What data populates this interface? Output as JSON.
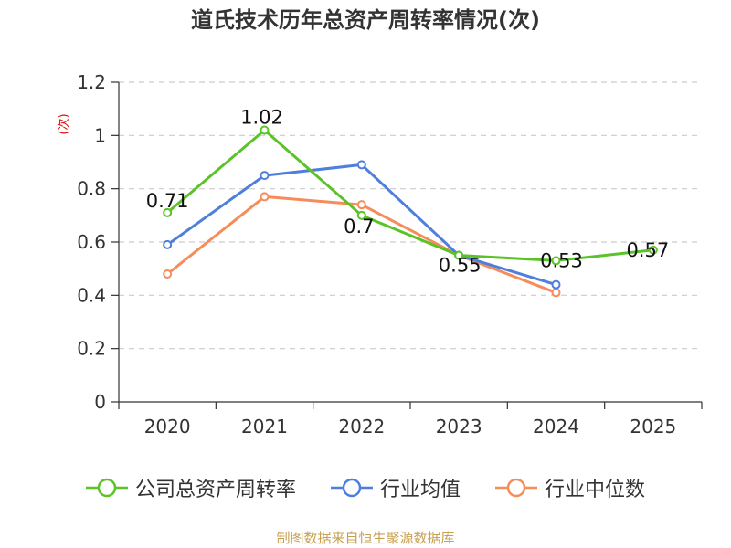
{
  "chart_data": {
    "type": "line",
    "title": "道氏技术历年总资产周转率情况(次)",
    "ylabel": "(次)",
    "categories": [
      "2020",
      "2021",
      "2022",
      "2023",
      "2024",
      "2025"
    ],
    "ylim": [
      0,
      1.2
    ],
    "yticks": [
      "0",
      "0.2",
      "0.4",
      "0.6",
      "0.8",
      "1",
      "1.2"
    ],
    "grid": true,
    "legend_position": "bottom",
    "series": [
      {
        "name": "公司总资产周转率",
        "color": "#5ac328",
        "values": [
          0.71,
          1.02,
          0.7,
          0.55,
          0.53,
          0.57
        ],
        "labels": [
          "0.71",
          "1.02",
          "0.7",
          "0.55",
          "0.53",
          "0.57"
        ]
      },
      {
        "name": "行业均值",
        "color": "#4f7fdc",
        "values": [
          0.59,
          0.85,
          0.89,
          0.55,
          0.44,
          null
        ]
      },
      {
        "name": "行业中位数",
        "color": "#f58c5a",
        "values": [
          0.48,
          0.77,
          0.74,
          0.55,
          0.41,
          null
        ]
      }
    ]
  },
  "source": "制图数据来自恒生聚源数据库"
}
